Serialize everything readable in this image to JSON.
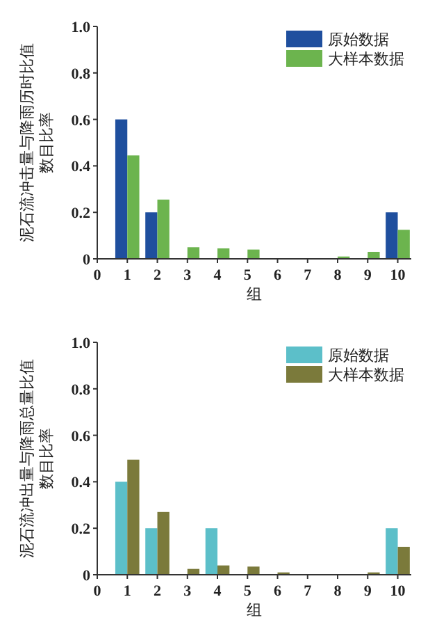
{
  "chart_data": [
    {
      "type": "bar",
      "xlabel": "组",
      "ylabel": "泥石流冲击量与降雨历时比值数目比率",
      "x": [
        1,
        2,
        3,
        4,
        5,
        6,
        7,
        8,
        9,
        10
      ],
      "xlim": [
        0,
        10.45
      ],
      "xticks": [
        0,
        1,
        2,
        3,
        4,
        5,
        6,
        7,
        8,
        9,
        10
      ],
      "ylim": [
        0,
        1.0
      ],
      "yticks": [
        {
          "value": 0,
          "label": "0"
        },
        {
          "value": 0.2,
          "label": "0.2"
        },
        {
          "value": 0.4,
          "label": "0.4"
        },
        {
          "value": 0.6,
          "label": "0.6"
        },
        {
          "value": 0.8,
          "label": "0.8"
        },
        {
          "value": 1.0,
          "label": "1.0"
        }
      ],
      "legend": "top right",
      "grid": false,
      "series": [
        {
          "name": "原始数据",
          "color": "#1f4f9e",
          "values": [
            0.6,
            0.2,
            0,
            0,
            0,
            0,
            0,
            0,
            0,
            0.2
          ]
        },
        {
          "name": "大样本数据",
          "color": "#6cb44e",
          "values": [
            0.445,
            0.255,
            0.05,
            0.045,
            0.04,
            0,
            0,
            0.01,
            0.03,
            0.125
          ]
        }
      ]
    },
    {
      "type": "bar",
      "xlabel": "组",
      "ylabel": "泥石流冲出量与降雨总量比值数目比率",
      "x": [
        1,
        2,
        3,
        4,
        5,
        6,
        7,
        8,
        9,
        10
      ],
      "xlim": [
        0,
        10.45
      ],
      "xticks": [
        0,
        1,
        2,
        3,
        4,
        5,
        6,
        7,
        8,
        9,
        10
      ],
      "ylim": [
        0,
        1.0
      ],
      "yticks": [
        {
          "value": 0,
          "label": "0"
        },
        {
          "value": 0.2,
          "label": "0.2"
        },
        {
          "value": 0.4,
          "label": "0.4"
        },
        {
          "value": 0.6,
          "label": "0.6"
        },
        {
          "value": 0.8,
          "label": "0.8"
        },
        {
          "value": 1.0,
          "label": "1.0"
        }
      ],
      "legend": "top right",
      "grid": false,
      "series": [
        {
          "name": "原始数据",
          "color": "#5cbfc9",
          "values": [
            0.4,
            0.2,
            0,
            0.2,
            0,
            0,
            0,
            0,
            0,
            0.2
          ]
        },
        {
          "name": "大样本数据",
          "color": "#7b7a3b",
          "values": [
            0.495,
            0.27,
            0.025,
            0.04,
            0.035,
            0.01,
            0,
            0,
            0.01,
            0.12
          ]
        }
      ]
    }
  ]
}
